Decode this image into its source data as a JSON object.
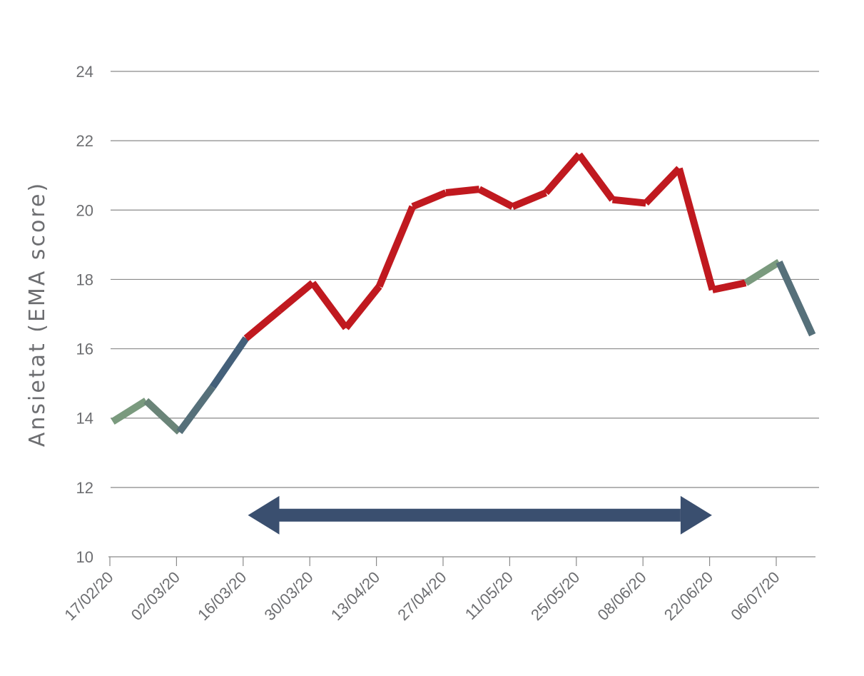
{
  "chart_data": {
    "type": "line",
    "title": "",
    "xlabel": "",
    "ylabel": "Ansietat (EMA score)",
    "ylim": [
      10,
      24
    ],
    "yticks": [
      10,
      12,
      14,
      16,
      18,
      20,
      22,
      24
    ],
    "grid": true,
    "tick_labels": [
      "17/02/20",
      "02/03/20",
      "16/03/20",
      "30/03/20",
      "13/04/20",
      "27/04/20",
      "11/05/20",
      "25/05/20",
      "08/06/20",
      "22/06/20",
      "06/07/20"
    ],
    "x": [
      "17/02/20",
      "24/02/20",
      "02/03/20",
      "09/03/20",
      "16/03/20",
      "23/03/20",
      "30/03/20",
      "06/04/20",
      "13/04/20",
      "20/04/20",
      "27/04/20",
      "04/05/20",
      "11/05/20",
      "18/05/20",
      "25/05/20",
      "01/06/20",
      "08/06/20",
      "15/06/20",
      "22/06/20",
      "29/06/20",
      "06/07/20",
      "13/07/20"
    ],
    "series": [
      {
        "values": [
          13.9,
          14.5,
          13.6,
          14.9,
          16.3,
          17.1,
          17.9,
          16.6,
          17.8,
          20.1,
          20.5,
          20.6,
          20.1,
          20.5,
          21.6,
          20.3,
          20.2,
          21.2,
          17.7,
          17.9,
          18.5,
          16.4
        ],
        "segment_colors": [
          "#7a9a7e",
          "#6a8478",
          "#56707a",
          "#44607a",
          "#c0191f",
          "#c0191f",
          "#c0191f",
          "#c0191f",
          "#c0191f",
          "#c0191f",
          "#c0191f",
          "#c0191f",
          "#c0191f",
          "#c0191f",
          "#c0191f",
          "#c0191f",
          "#c0191f",
          "#c0191f",
          "#c0191f",
          "#7a9a7e",
          "#56707a"
        ]
      }
    ],
    "annotation": {
      "type": "double-arrow",
      "from": "23/03/20",
      "to": "15/06/20",
      "y": 11.2,
      "color": "#3a4f6f"
    }
  }
}
